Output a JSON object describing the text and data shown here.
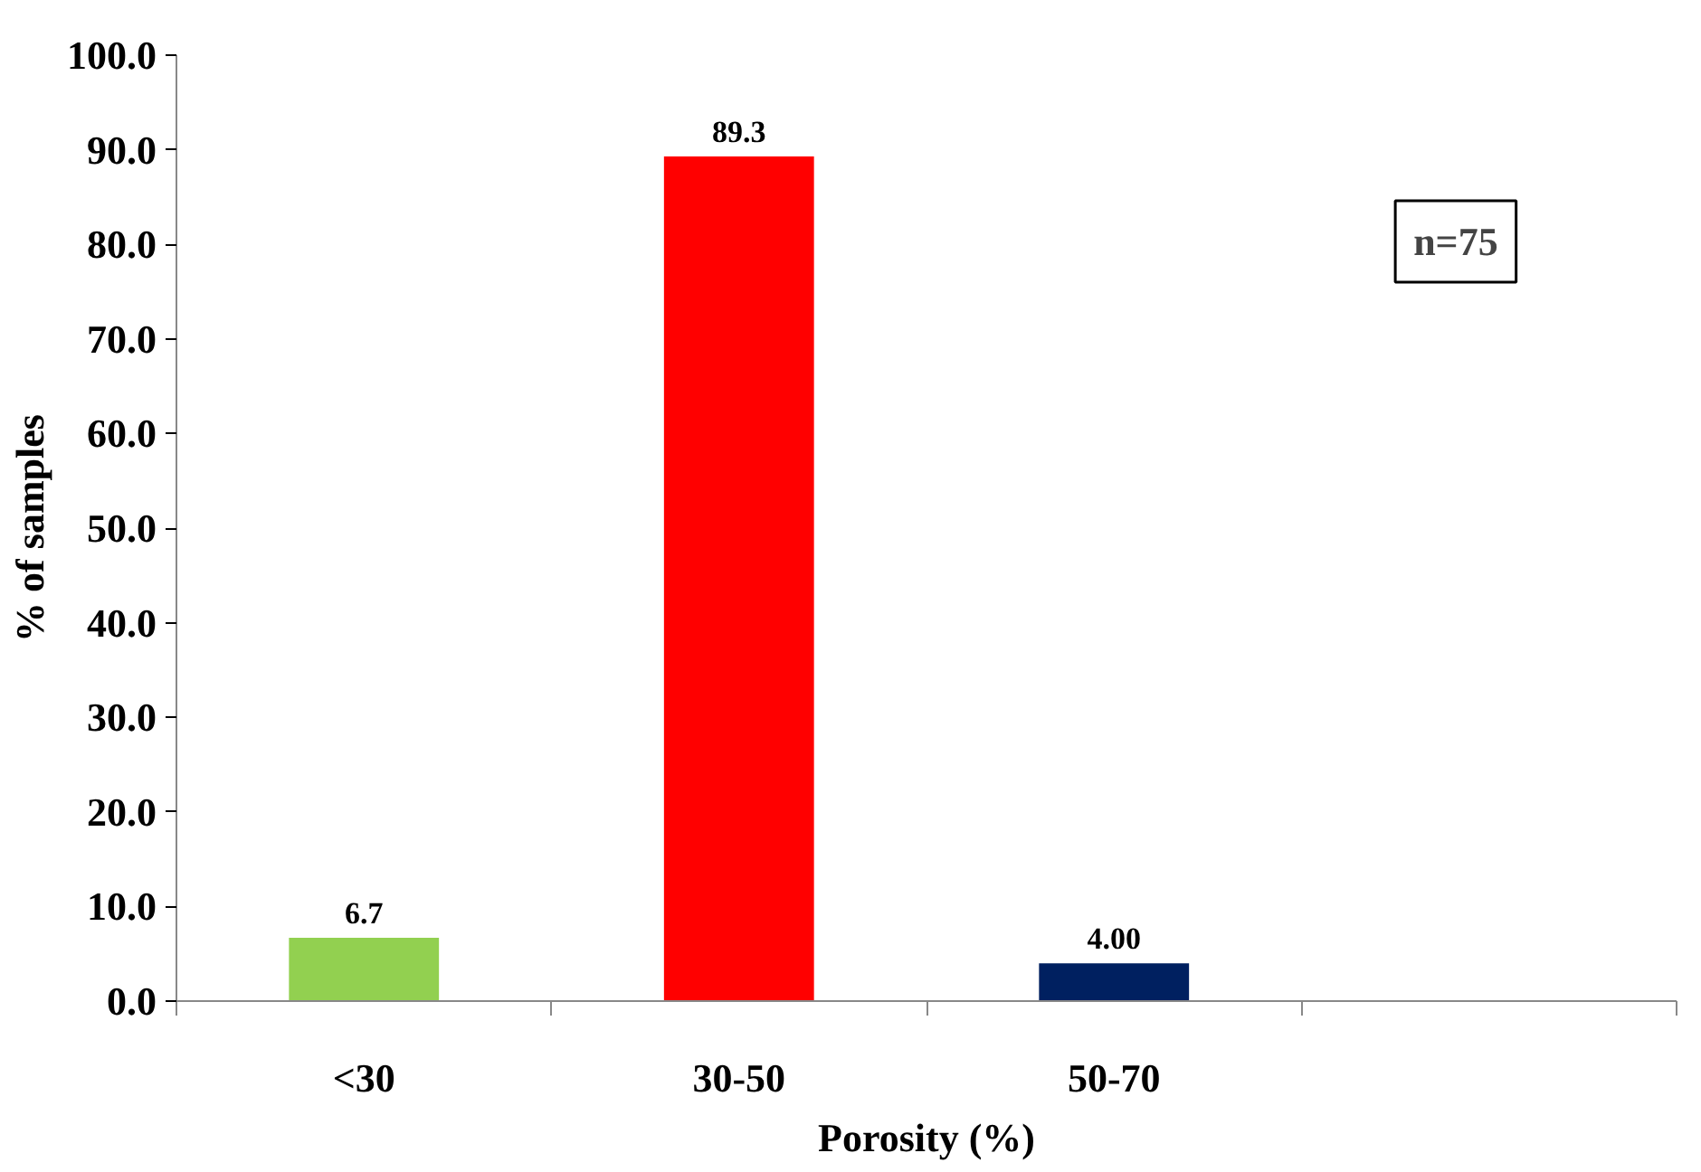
{
  "chart_data": {
    "type": "bar",
    "xlabel": "Porosity (%)",
    "ylabel": "% of samples",
    "categories": [
      "<30",
      "30-50",
      "50-70",
      null
    ],
    "values": [
      6.7,
      89.3,
      4.0,
      null
    ],
    "colors": [
      "#92d050",
      "#ff0000",
      "#002060",
      "#000000"
    ],
    "value_labels": [
      "6.7",
      "89.3",
      "4.00",
      null
    ],
    "ylim": [
      0,
      100
    ],
    "yticks": [
      {
        "value": 0,
        "label": "0.0"
      },
      {
        "value": 10,
        "label": "10.0"
      },
      {
        "value": 20,
        "label": "20.0"
      },
      {
        "value": 30,
        "label": "30.0"
      },
      {
        "value": 40,
        "label": "40.0"
      },
      {
        "value": 50,
        "label": "50.0"
      },
      {
        "value": 60,
        "label": "60.0"
      },
      {
        "value": 70,
        "label": "70.0"
      },
      {
        "value": 80,
        "label": "80.0"
      },
      {
        "value": 90,
        "label": "90.0"
      },
      {
        "value": 100,
        "label": "100.0"
      }
    ],
    "annotations": [
      "n=75"
    ],
    "grid": false
  }
}
